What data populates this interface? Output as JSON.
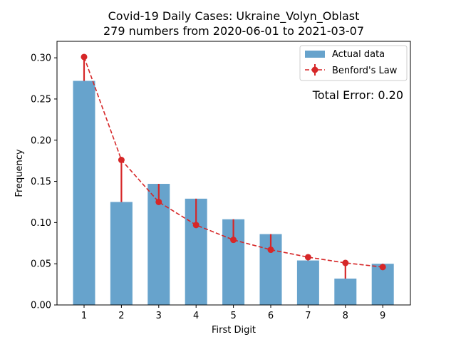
{
  "chart_data": {
    "type": "bar",
    "title_line1": "Covid-19 Daily Cases: Ukraine_Volyn_Oblast",
    "title_line2": "279 numbers from 2020-06-01 to 2021-03-07",
    "xlabel": "First Digit",
    "ylabel": "Frequency",
    "categories": [
      "1",
      "2",
      "3",
      "4",
      "5",
      "6",
      "7",
      "8",
      "9"
    ],
    "ylim": [
      0,
      0.32
    ],
    "yticks": [
      "0.00",
      "0.05",
      "0.10",
      "0.15",
      "0.20",
      "0.25",
      "0.30"
    ],
    "series": [
      {
        "name": "Actual data",
        "kind": "bar",
        "color": "#1f77b4",
        "opacity": 0.68,
        "values": [
          0.272,
          0.125,
          0.147,
          0.129,
          0.104,
          0.086,
          0.054,
          0.032,
          0.05
        ]
      },
      {
        "name": "Benford's Law",
        "kind": "line-dashed-markers",
        "color": "#d62728",
        "values": [
          0.301,
          0.176,
          0.125,
          0.097,
          0.079,
          0.067,
          0.058,
          0.051,
          0.046
        ]
      }
    ],
    "annotation": "Total Error: 0.20",
    "annotation_color": "#d62728",
    "legend_position": "top-right",
    "grid": false
  }
}
